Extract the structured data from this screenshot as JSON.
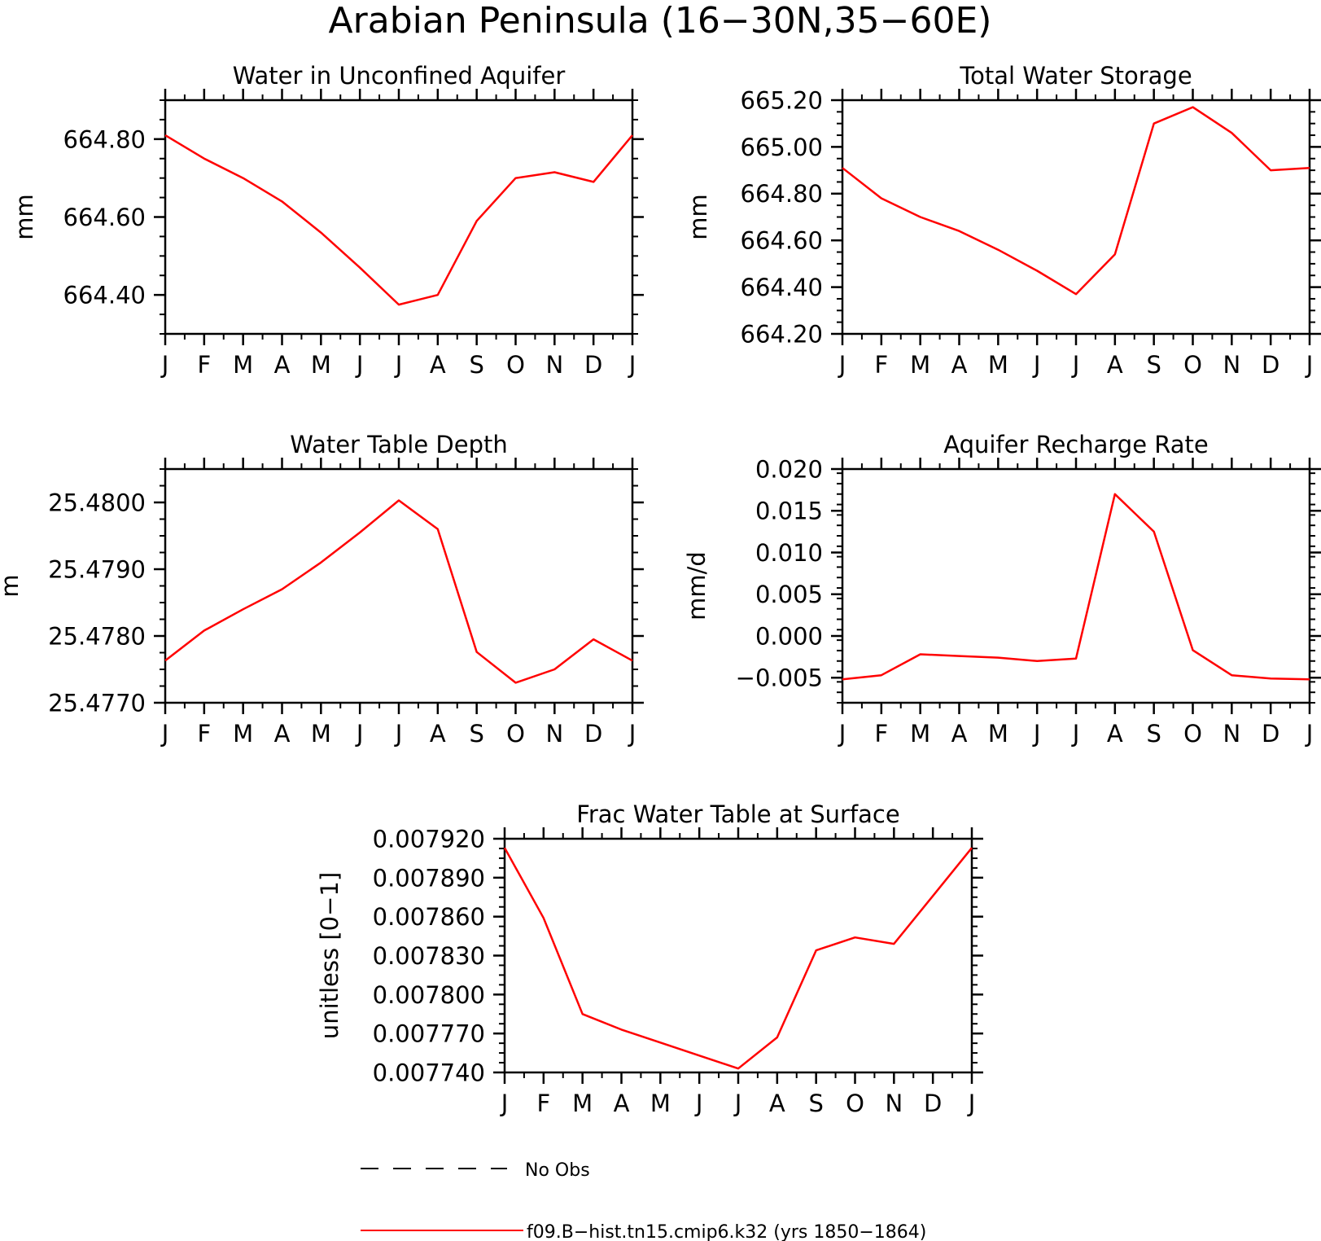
{
  "figure": {
    "title": "Arabian Peninsula (16−30N,35−60E)",
    "colors": {
      "model": "#ff0000",
      "obs": "#000000",
      "axis": "#000000"
    }
  },
  "legend": {
    "placement": "bottom-center",
    "items": [
      {
        "label": "No Obs",
        "style": "dashed",
        "color": "#000000"
      },
      {
        "label": "f09.B−hist.tn15.cmip6.k32 (yrs 1850−1864)",
        "style": "solid",
        "color": "#ff0000"
      }
    ]
  },
  "chart_data": [
    {
      "type": "line",
      "title": "Water in Unconfined Aquifer",
      "ylabel": "mm",
      "categories": [
        "J",
        "F",
        "M",
        "A",
        "M",
        "J",
        "J",
        "A",
        "S",
        "O",
        "N",
        "D",
        "J"
      ],
      "ylim": [
        664.3,
        664.9
      ],
      "yticks": [
        664.4,
        664.6,
        664.8
      ],
      "ytick_labels": [
        "664.40",
        "664.60",
        "664.80"
      ],
      "series": [
        {
          "values": [
            664.81,
            664.75,
            664.7,
            664.64,
            664.56,
            664.47,
            664.375,
            664.4,
            664.59,
            664.7,
            664.715,
            664.69,
            664.81
          ]
        }
      ]
    },
    {
      "type": "line",
      "title": "Total Water Storage",
      "ylabel": "mm",
      "categories": [
        "J",
        "F",
        "M",
        "A",
        "M",
        "J",
        "J",
        "A",
        "S",
        "O",
        "N",
        "D",
        "J"
      ],
      "ylim": [
        664.2,
        665.2
      ],
      "yticks": [
        664.2,
        664.4,
        664.6,
        664.8,
        665.0,
        665.2
      ],
      "ytick_labels": [
        "664.20",
        "664.40",
        "664.60",
        "664.80",
        "665.00",
        "665.20"
      ],
      "series": [
        {
          "values": [
            664.91,
            664.78,
            664.7,
            664.64,
            664.56,
            664.47,
            664.37,
            664.54,
            665.1,
            665.17,
            665.06,
            664.9,
            664.91
          ]
        }
      ]
    },
    {
      "type": "line",
      "title": "Water Table Depth",
      "ylabel": "m",
      "categories": [
        "J",
        "F",
        "M",
        "A",
        "M",
        "J",
        "J",
        "A",
        "S",
        "O",
        "N",
        "D",
        "J"
      ],
      "ylim": [
        25.477,
        25.4805
      ],
      "yticks": [
        25.477,
        25.478,
        25.479,
        25.48
      ],
      "ytick_labels": [
        "25.4770",
        "25.4780",
        "25.4790",
        "25.4800"
      ],
      "series": [
        {
          "values": [
            25.47763,
            25.47808,
            25.4784,
            25.4787,
            25.4791,
            25.47955,
            25.48003,
            25.4796,
            25.47776,
            25.4773,
            25.4775,
            25.47795,
            25.47763
          ]
        }
      ]
    },
    {
      "type": "line",
      "title": "Aquifer Recharge Rate",
      "ylabel": "mm/d",
      "categories": [
        "J",
        "F",
        "M",
        "A",
        "M",
        "J",
        "J",
        "A",
        "S",
        "O",
        "N",
        "D",
        "J"
      ],
      "ylim": [
        -0.008,
        0.02
      ],
      "yticks": [
        -0.005,
        0.0,
        0.005,
        0.01,
        0.015,
        0.02
      ],
      "ytick_labels": [
        "−0.005",
        "0.000",
        "0.005",
        "0.010",
        "0.015",
        "0.020"
      ],
      "series": [
        {
          "values": [
            -0.0052,
            -0.0047,
            -0.0022,
            -0.0024,
            -0.0026,
            -0.003,
            -0.0027,
            0.017,
            0.0125,
            -0.0017,
            -0.0047,
            -0.0051,
            -0.0052
          ]
        }
      ]
    },
    {
      "type": "line",
      "title": "Frac Water Table at Surface",
      "ylabel": "unitless [0−1]",
      "categories": [
        "J",
        "F",
        "M",
        "A",
        "M",
        "J",
        "J",
        "A",
        "S",
        "O",
        "N",
        "D",
        "J"
      ],
      "ylim": [
        0.00774,
        0.00792
      ],
      "yticks": [
        0.00774,
        0.00777,
        0.0078,
        0.00783,
        0.00786,
        0.00789,
        0.00792
      ],
      "ytick_labels": [
        "0.007740",
        "0.007770",
        "0.007800",
        "0.007830",
        "0.007860",
        "0.007890",
        "0.007920"
      ],
      "series": [
        {
          "values": [
            0.007913,
            0.007859,
            0.007785,
            0.007773,
            0.007763,
            0.007753,
            0.007743,
            0.007767,
            0.007834,
            0.007844,
            0.007839,
            0.007876,
            0.007913
          ]
        }
      ]
    }
  ]
}
